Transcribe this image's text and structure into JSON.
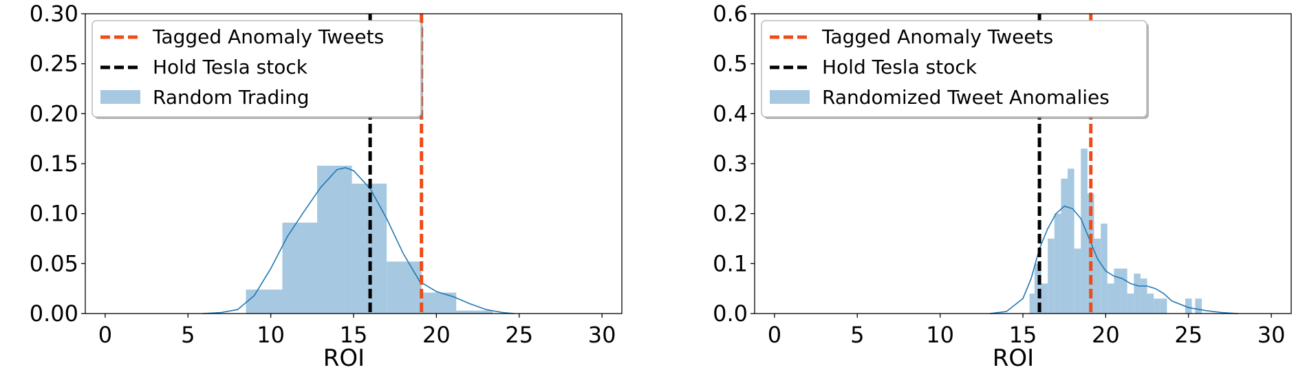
{
  "chart_data": [
    {
      "type": "bar",
      "title": "",
      "xlabel": "ROI",
      "ylabel": "",
      "xlim": [
        -1.2,
        31.2
      ],
      "ylim": [
        0,
        0.3
      ],
      "xticks": [
        0,
        5,
        10,
        15,
        20,
        25,
        30
      ],
      "yticks": [
        0.0,
        0.05,
        0.1,
        0.15,
        0.2,
        0.25,
        0.3
      ],
      "ytick_labels": [
        "0.00",
        "0.05",
        "0.10",
        "0.15",
        "0.20",
        "0.25",
        "0.30"
      ],
      "grid": false,
      "legend_position": "upper-left",
      "histogram": {
        "name": "Random Trading",
        "color": "#a6c8e1",
        "bins": [
          {
            "x0": 8.5,
            "x1": 10.7,
            "value": 0.024
          },
          {
            "x0": 10.7,
            "x1": 12.8,
            "value": 0.091
          },
          {
            "x0": 12.8,
            "x1": 14.9,
            "value": 0.148
          },
          {
            "x0": 14.9,
            "x1": 17.0,
            "value": 0.13
          },
          {
            "x0": 17.0,
            "x1": 19.1,
            "value": 0.052
          },
          {
            "x0": 19.1,
            "x1": 21.2,
            "value": 0.021
          },
          {
            "x0": 21.2,
            "x1": 23.4,
            "value": 0.003
          }
        ]
      },
      "kde": {
        "color": "#1f77b4",
        "x": [
          5.9,
          7,
          8,
          9,
          10,
          11,
          12,
          13,
          14,
          14.5,
          15,
          16,
          17,
          18,
          19,
          20,
          21,
          22,
          23,
          24,
          24.7
        ],
        "y": [
          0.0,
          0.001,
          0.004,
          0.018,
          0.045,
          0.077,
          0.102,
          0.126,
          0.144,
          0.146,
          0.143,
          0.125,
          0.095,
          0.06,
          0.032,
          0.022,
          0.017,
          0.01,
          0.004,
          0.001,
          0.0
        ]
      },
      "vlines": [
        {
          "name": "Tagged Anomaly Tweets",
          "x": 19.1,
          "color": "#f04b16"
        },
        {
          "name": "Hold Tesla stock",
          "x": 16.0,
          "color": "#000000"
        }
      ],
      "legend": [
        "Tagged Anomaly Tweets",
        "Hold Tesla stock",
        "Random Trading"
      ]
    },
    {
      "type": "bar",
      "title": "",
      "xlabel": "ROI",
      "ylabel": "",
      "xlim": [
        -1.2,
        31.2
      ],
      "ylim": [
        0,
        0.6
      ],
      "xticks": [
        0,
        5,
        10,
        15,
        20,
        25,
        30
      ],
      "yticks": [
        0.0,
        0.1,
        0.2,
        0.3,
        0.4,
        0.5,
        0.6
      ],
      "ytick_labels": [
        "0.0",
        "0.1",
        "0.2",
        "0.3",
        "0.4",
        "0.5",
        "0.6"
      ],
      "grid": false,
      "legend_position": "upper-left",
      "histogram": {
        "name": "Randomized Tweet Anomalies",
        "color": "#a6c8e1",
        "bins": [
          {
            "x0": 15.4,
            "x1": 15.7,
            "value": 0.04
          },
          {
            "x0": 15.7,
            "x1": 16.1,
            "value": 0.1
          },
          {
            "x0": 16.1,
            "x1": 16.5,
            "value": 0.06
          },
          {
            "x0": 16.5,
            "x1": 16.9,
            "value": 0.15
          },
          {
            "x0": 16.9,
            "x1": 17.3,
            "value": 0.2
          },
          {
            "x0": 17.3,
            "x1": 17.7,
            "value": 0.27
          },
          {
            "x0": 17.7,
            "x1": 18.1,
            "value": 0.29
          },
          {
            "x0": 18.1,
            "x1": 18.5,
            "value": 0.13
          },
          {
            "x0": 18.5,
            "x1": 18.9,
            "value": 0.33
          },
          {
            "x0": 18.9,
            "x1": 19.3,
            "value": 0.24
          },
          {
            "x0": 19.3,
            "x1": 19.7,
            "value": 0.15
          },
          {
            "x0": 19.7,
            "x1": 20.1,
            "value": 0.18
          },
          {
            "x0": 20.1,
            "x1": 20.5,
            "value": 0.06
          },
          {
            "x0": 20.5,
            "x1": 20.9,
            "value": 0.09
          },
          {
            "x0": 20.9,
            "x1": 21.3,
            "value": 0.09
          },
          {
            "x0": 21.3,
            "x1": 21.7,
            "value": 0.04
          },
          {
            "x0": 21.7,
            "x1": 22.1,
            "value": 0.08
          },
          {
            "x0": 22.1,
            "x1": 22.5,
            "value": 0.07
          },
          {
            "x0": 22.5,
            "x1": 22.9,
            "value": 0.04
          },
          {
            "x0": 22.9,
            "x1": 23.3,
            "value": 0.03
          },
          {
            "x0": 23.3,
            "x1": 23.7,
            "value": 0.03
          },
          {
            "x0": 24.8,
            "x1": 25.2,
            "value": 0.03
          },
          {
            "x0": 25.4,
            "x1": 25.8,
            "value": 0.03
          }
        ]
      },
      "kde": {
        "color": "#1f77b4",
        "x": [
          13.0,
          14.0,
          15.0,
          15.5,
          16.0,
          16.5,
          17.0,
          17.5,
          18.0,
          18.5,
          19.0,
          19.5,
          20.0,
          20.5,
          21.0,
          21.5,
          22.0,
          22.5,
          23.0,
          23.5,
          24.0,
          25.0,
          26.0,
          27.0,
          28.0
        ],
        "y": [
          0.0,
          0.004,
          0.03,
          0.07,
          0.13,
          0.17,
          0.2,
          0.215,
          0.21,
          0.19,
          0.15,
          0.11,
          0.085,
          0.075,
          0.07,
          0.06,
          0.055,
          0.055,
          0.05,
          0.04,
          0.025,
          0.012,
          0.006,
          0.002,
          0.0
        ]
      },
      "vlines": [
        {
          "name": "Tagged Anomaly Tweets",
          "x": 19.1,
          "color": "#f04b16"
        },
        {
          "name": "Hold Tesla stock",
          "x": 16.0,
          "color": "#000000"
        }
      ],
      "legend": [
        "Tagged Anomaly Tweets",
        "Hold Tesla stock",
        "Randomized Tweet Anomalies"
      ]
    }
  ]
}
